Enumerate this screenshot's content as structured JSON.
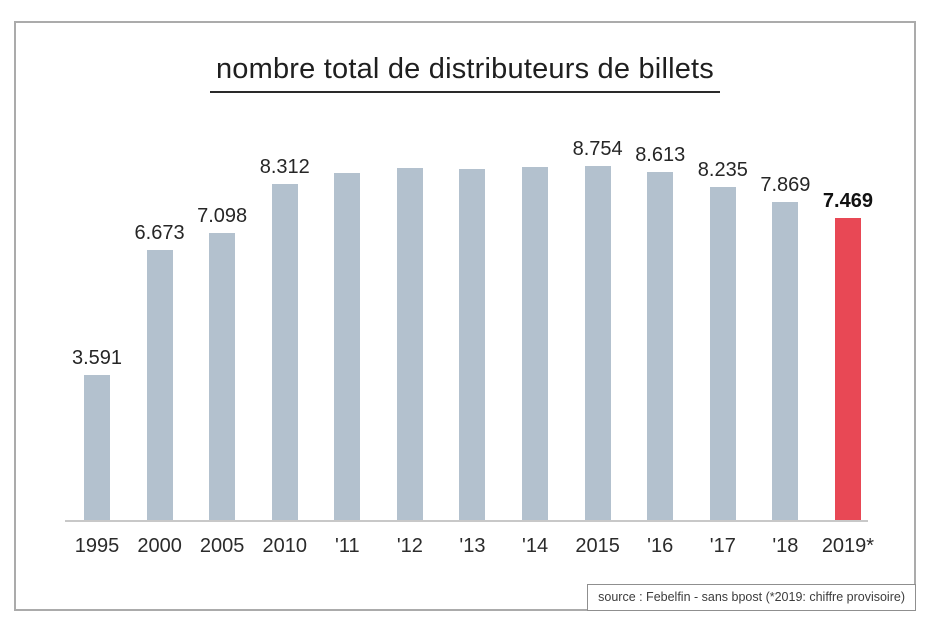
{
  "page": {
    "background": "#ffffff",
    "frame_border_color": "#ababab"
  },
  "chart_data": {
    "type": "bar",
    "title": "nombre total de distributeurs de billets",
    "categories": [
      "1995",
      "2000",
      "2005",
      "2010",
      "'11",
      "'12",
      "'13",
      "'14",
      "2015",
      "'16",
      "'17",
      "'18",
      "2019*"
    ],
    "values": [
      3591,
      6673,
      7098,
      8312,
      8600,
      8700,
      8690,
      8740,
      8754,
      8613,
      8235,
      7869,
      7469
    ],
    "bar_labels": [
      "3.591",
      "6.673",
      "7.098",
      "8.312",
      "",
      "",
      "",
      "",
      "8.754",
      "8.613",
      "8.235",
      "7.869",
      "7.469"
    ],
    "highlight_index": 12,
    "bar_color": "#b3c1ce",
    "highlight_color": "#e84855",
    "label_color": "#262626",
    "axis_color": "#c8c8c8",
    "xlabel": "",
    "ylabel": "",
    "ylim": [
      0,
      9000
    ],
    "grid": false,
    "legend": false
  },
  "footer": {
    "source": "source : Febelfin - sans bpost (*2019: chiffre provisoire)"
  }
}
